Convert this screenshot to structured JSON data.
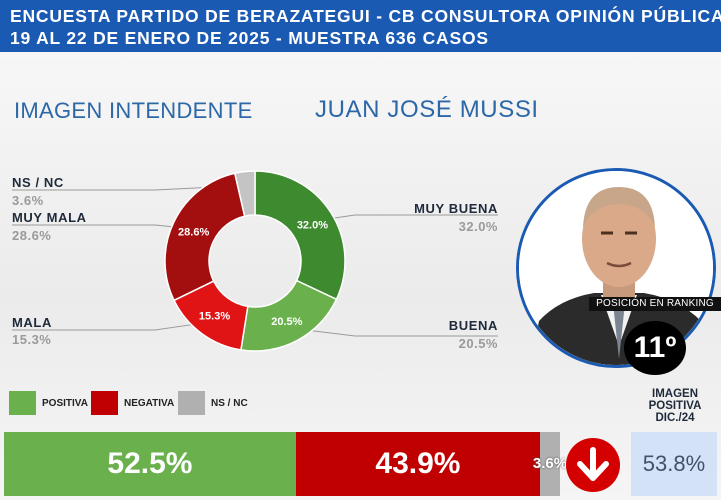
{
  "header": {
    "line1": "ENCUESTA PARTIDO DE BERAZATEGUI - CB CONSULTORA OPINIÓN PÚBLICA",
    "line2": "19 AL 22 DE ENERO DE 2025 - MUESTRA 636 CASOS"
  },
  "subtitle": {
    "left": "IMAGEN INTENDENTE",
    "right": "JUAN JOSÉ MUSSI"
  },
  "chart_data": {
    "type": "pie",
    "style": "donut",
    "categories": [
      "MUY BUENA",
      "BUENA",
      "MALA",
      "MUY MALA",
      "NS / NC"
    ],
    "values": [
      32.0,
      20.5,
      15.3,
      28.6,
      3.6
    ],
    "value_labels": [
      "32.0%",
      "20.5%",
      "15.3%",
      "28.6%",
      "3.6%"
    ],
    "colors": [
      "#3e8a2e",
      "#6ab04c",
      "#e01414",
      "#a30f0f",
      "#c4c4c4"
    ]
  },
  "labels": {
    "ns_nc": {
      "name": "NS / NC",
      "value": "3.6%"
    },
    "muy_mala": {
      "name": "MUY MALA",
      "value": "28.6%"
    },
    "mala": {
      "name": "MALA",
      "value": "15.3%"
    },
    "muy_buena": {
      "name": "MUY BUENA",
      "value": "32.0%"
    },
    "buena": {
      "name": "BUENA",
      "value": "20.5%"
    }
  },
  "legend": [
    {
      "label": "POSITIVA",
      "color": "#6ab04c"
    },
    {
      "label": "NEGATIVA",
      "color": "#c00000"
    },
    {
      "label": "NS / NC",
      "color": "#b0b0b0"
    }
  ],
  "ranking": {
    "label": "POSICIÓN EN RANKING",
    "value": "11º"
  },
  "summary": {
    "positiva": {
      "value": 52.5,
      "label": "52.5%"
    },
    "negativa": {
      "value": 43.9,
      "label": "43.9%"
    },
    "ns_nc": {
      "value": 3.6,
      "label": "3.6%"
    }
  },
  "previous": {
    "title": "IMAGEN POSITIVA DIC./24",
    "value": "53.8%",
    "trend": "down-arrow-icon"
  }
}
